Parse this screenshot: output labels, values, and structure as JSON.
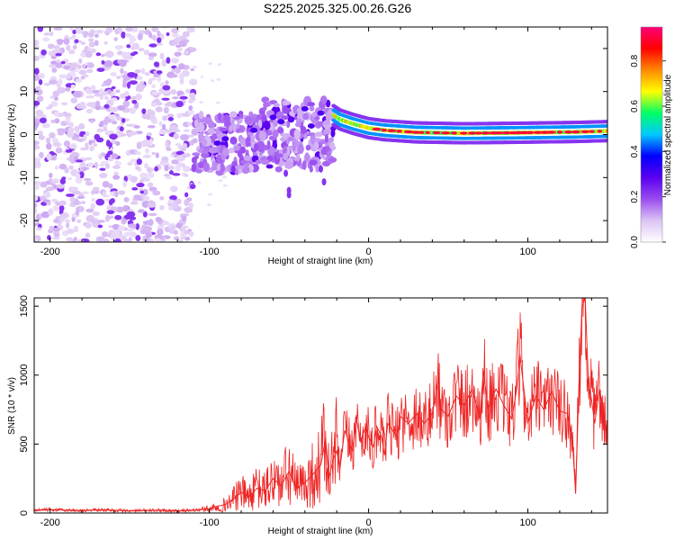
{
  "title": "S225.2025.325.00.26.G26",
  "chart_data": [
    {
      "type": "heatmap",
      "name": "spectrogram",
      "xlabel": "Height of straight line (km)",
      "ylabel": "Frequency (Hz)",
      "xlim": [
        -210,
        150
      ],
      "ylim": [
        -25,
        25
      ],
      "xticks": [
        -200,
        -100,
        0,
        100
      ],
      "yticks": [
        -20,
        -10,
        0,
        10,
        20
      ],
      "colorbar": {
        "label": "Normalized spectral amplitude",
        "range": [
          0,
          0.95
        ],
        "ticks": [
          "0.0",
          "0.2",
          "0.4",
          "0.6",
          "0.8"
        ],
        "colors": [
          "#ffffff",
          "#dcc4f4",
          "#9a4cf0",
          "#5a00f0",
          "#0000ff",
          "#00c8ff",
          "#00ff64",
          "#ffff00",
          "#ff8800",
          "#ff0000",
          "#ff0078"
        ]
      },
      "regions": [
        {
          "label": "noise (scattered blobs)",
          "x_range": [
            -210,
            -110
          ],
          "f_range": [
            -25,
            25
          ],
          "amplitude_range": [
            0.05,
            0.22
          ]
        },
        {
          "label": "diffuse patches",
          "x_range": [
            -110,
            -22
          ],
          "f_range": [
            -15,
            10
          ],
          "amplitude_range": [
            0.1,
            0.3
          ]
        },
        {
          "label": "frequency line",
          "x_range": [
            -22,
            150
          ],
          "f_center": [
            5,
            0
          ],
          "amplitude_range": [
            0.3,
            0.9
          ]
        }
      ],
      "line_track": {
        "x": [
          -22,
          -18,
          -10,
          0,
          10,
          30,
          60,
          90,
          110,
          130,
          150
        ],
        "f": [
          4.5,
          3.5,
          2.5,
          1.5,
          1.0,
          0.5,
          0.3,
          0.4,
          0.5,
          0.6,
          0.8
        ]
      }
    },
    {
      "type": "line",
      "name": "snr",
      "xlabel": "Height of straight line (km)",
      "ylabel": "SNR (10 * v/v)",
      "xlim": [
        -210,
        150
      ],
      "ylim": [
        0,
        1560
      ],
      "xticks": [
        -200,
        -100,
        0,
        100
      ],
      "yticks": [
        0,
        500,
        1000,
        1500
      ],
      "color": "#ee2222",
      "series": [
        {
          "name": "SNR",
          "x": [
            -210,
            -200,
            -190,
            -180,
            -170,
            -160,
            -150,
            -140,
            -130,
            -120,
            -110,
            -100,
            -95,
            -90,
            -85,
            -80,
            -75,
            -70,
            -65,
            -60,
            -55,
            -50,
            -45,
            -40,
            -35,
            -30,
            -27,
            -25,
            -22,
            -20,
            -18,
            -15,
            -12,
            -10,
            -8,
            -5,
            -2,
            0,
            3,
            5,
            8,
            10,
            12,
            15,
            18,
            20,
            25,
            30,
            35,
            40,
            44,
            45,
            50,
            55,
            60,
            65,
            70,
            72,
            75,
            80,
            85,
            90,
            93,
            95,
            100,
            105,
            110,
            115,
            120,
            125,
            128,
            130,
            132,
            134,
            136,
            138,
            140,
            142,
            145,
            148,
            150
          ],
          "y": [
            20,
            25,
            20,
            18,
            22,
            20,
            15,
            18,
            20,
            15,
            20,
            30,
            50,
            60,
            100,
            150,
            120,
            180,
            160,
            250,
            200,
            300,
            180,
            220,
            280,
            350,
            540,
            250,
            400,
            450,
            320,
            600,
            500,
            450,
            700,
            520,
            620,
            550,
            480,
            630,
            560,
            420,
            650,
            600,
            550,
            700,
            650,
            720,
            650,
            720,
            980,
            760,
            700,
            850,
            780,
            900,
            680,
            1030,
            760,
            900,
            780,
            680,
            900,
            1150,
            650,
            850,
            750,
            880,
            740,
            720,
            520,
            140,
            900,
            1500,
            1560,
            950,
            820,
            650,
            900,
            700,
            520
          ]
        }
      ]
    }
  ]
}
